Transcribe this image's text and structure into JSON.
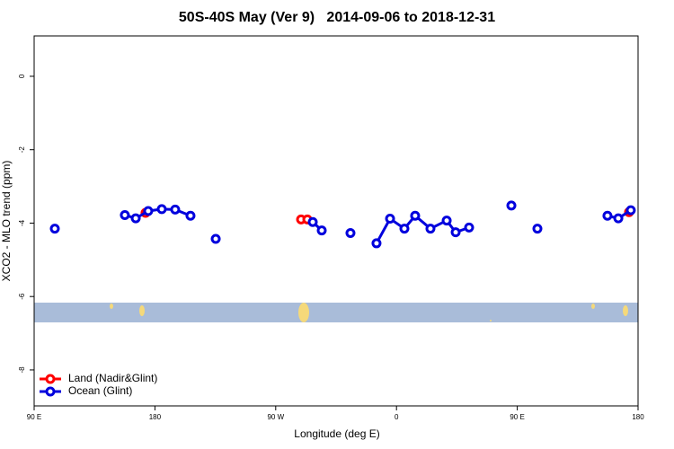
{
  "chart_data": {
    "type": "line",
    "title": "50S-40S May (Ver 9)   2014-09-06 to 2018-12-31",
    "xlabel": "Longitude (deg E)",
    "ylabel": "XCO2 - MLO trend (ppm)",
    "xlim": [
      90,
      540
    ],
    "xticks": [
      {
        "value": 90,
        "label": "90 E"
      },
      180,
      {
        "value": 270,
        "label": "90 W"
      },
      {
        "value": 360,
        "label": "0"
      },
      {
        "value": 450,
        "label": "90 E"
      },
      {
        "value": 540,
        "label": "180"
      }
    ],
    "ylim": [
      -8.98,
      1.1
    ],
    "yticks": [
      0,
      -2,
      -4,
      -6,
      -8
    ],
    "legend": "bottom-left",
    "series": [
      {
        "name": "Land (Nadir&Glint)",
        "color": "#ff0000",
        "x": [
          173.0,
          null,
          288.9,
          293.6,
          null,
          533.3
        ],
        "values": [
          -3.72,
          null,
          -3.9,
          -3.9,
          null,
          -3.7
        ]
      },
      {
        "name": "Ocean (Glint)",
        "color": "#0000dd",
        "x": [
          105.4,
          null,
          157.6,
          165.7,
          175.0,
          185.1,
          195.1,
          206.5,
          null,
          225.3,
          null,
          297.6,
          304.3,
          null,
          325.7,
          null,
          345.1,
          355.2,
          365.9,
          373.9,
          385.3,
          397.4,
          404.1,
          414.1,
          null,
          445.6,
          null,
          465.0,
          null,
          517.2,
          525.3,
          534.6
        ],
        "values": [
          -4.15,
          null,
          -3.78,
          -3.87,
          -3.67,
          -3.62,
          -3.63,
          -3.8,
          null,
          -4.43,
          null,
          -3.97,
          -4.2,
          null,
          -4.27,
          null,
          -4.55,
          -3.88,
          -4.15,
          -3.8,
          -4.15,
          -3.93,
          -4.25,
          -4.12,
          null,
          -3.52,
          null,
          -4.15,
          null,
          -3.8,
          -3.87,
          -3.65
        ]
      }
    ]
  }
}
